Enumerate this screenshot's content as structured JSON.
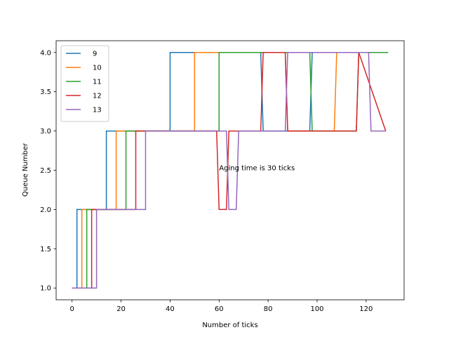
{
  "chart_data": {
    "type": "line",
    "step": true,
    "xlabel": "Number of ticks",
    "ylabel": "Queue Number",
    "xlim": [
      -6.5,
      135.5
    ],
    "ylim": [
      0.85,
      4.15
    ],
    "xticks": [
      0,
      20,
      40,
      60,
      80,
      100,
      120
    ],
    "yticks": [
      1.0,
      1.5,
      2.0,
      2.5,
      3.0,
      3.5,
      4.0
    ],
    "grid": false,
    "legend_position": "upper-left",
    "annotation": {
      "text": "Aging time is 30 ticks",
      "x": 60,
      "y": 2.5
    },
    "series": [
      {
        "name": "9",
        "color": "#1f77b4",
        "x": [
          0,
          2,
          2,
          14,
          14,
          40,
          40,
          77,
          78,
          97,
          98,
          128
        ],
        "y": [
          1,
          1,
          2,
          2,
          3,
          3,
          4,
          4,
          3,
          3,
          4,
          4
        ]
      },
      {
        "name": "10",
        "color": "#ff7f0e",
        "x": [
          0,
          4,
          4,
          18,
          18,
          50,
          50,
          87,
          88,
          107,
          108,
          128
        ],
        "y": [
          1,
          1,
          2,
          2,
          3,
          3,
          4,
          4,
          3,
          3,
          4,
          4
        ]
      },
      {
        "name": "11",
        "color": "#2ca02c",
        "x": [
          0,
          6,
          6,
          22,
          22,
          60,
          60,
          97,
          98,
          116,
          117,
          129
        ],
        "y": [
          1,
          1,
          2,
          2,
          3,
          3,
          4,
          4,
          3,
          3,
          4,
          4
        ]
      },
      {
        "name": "12",
        "color": "#d62728",
        "x": [
          0,
          8,
          8,
          26,
          26,
          59,
          60,
          63,
          64,
          77,
          78,
          87,
          88,
          116,
          117,
          128
        ],
        "y": [
          1,
          1,
          2,
          2,
          3,
          3,
          2,
          2,
          3,
          3,
          4,
          4,
          3,
          3,
          4,
          3
        ]
      },
      {
        "name": "13",
        "color": "#9467bd",
        "x": [
          0,
          10,
          10,
          30,
          30,
          63,
          64,
          67,
          68,
          87,
          88,
          121,
          122,
          128
        ],
        "y": [
          1,
          1,
          2,
          2,
          3,
          3,
          2,
          2,
          3,
          3,
          4,
          4,
          3,
          3
        ]
      }
    ]
  }
}
